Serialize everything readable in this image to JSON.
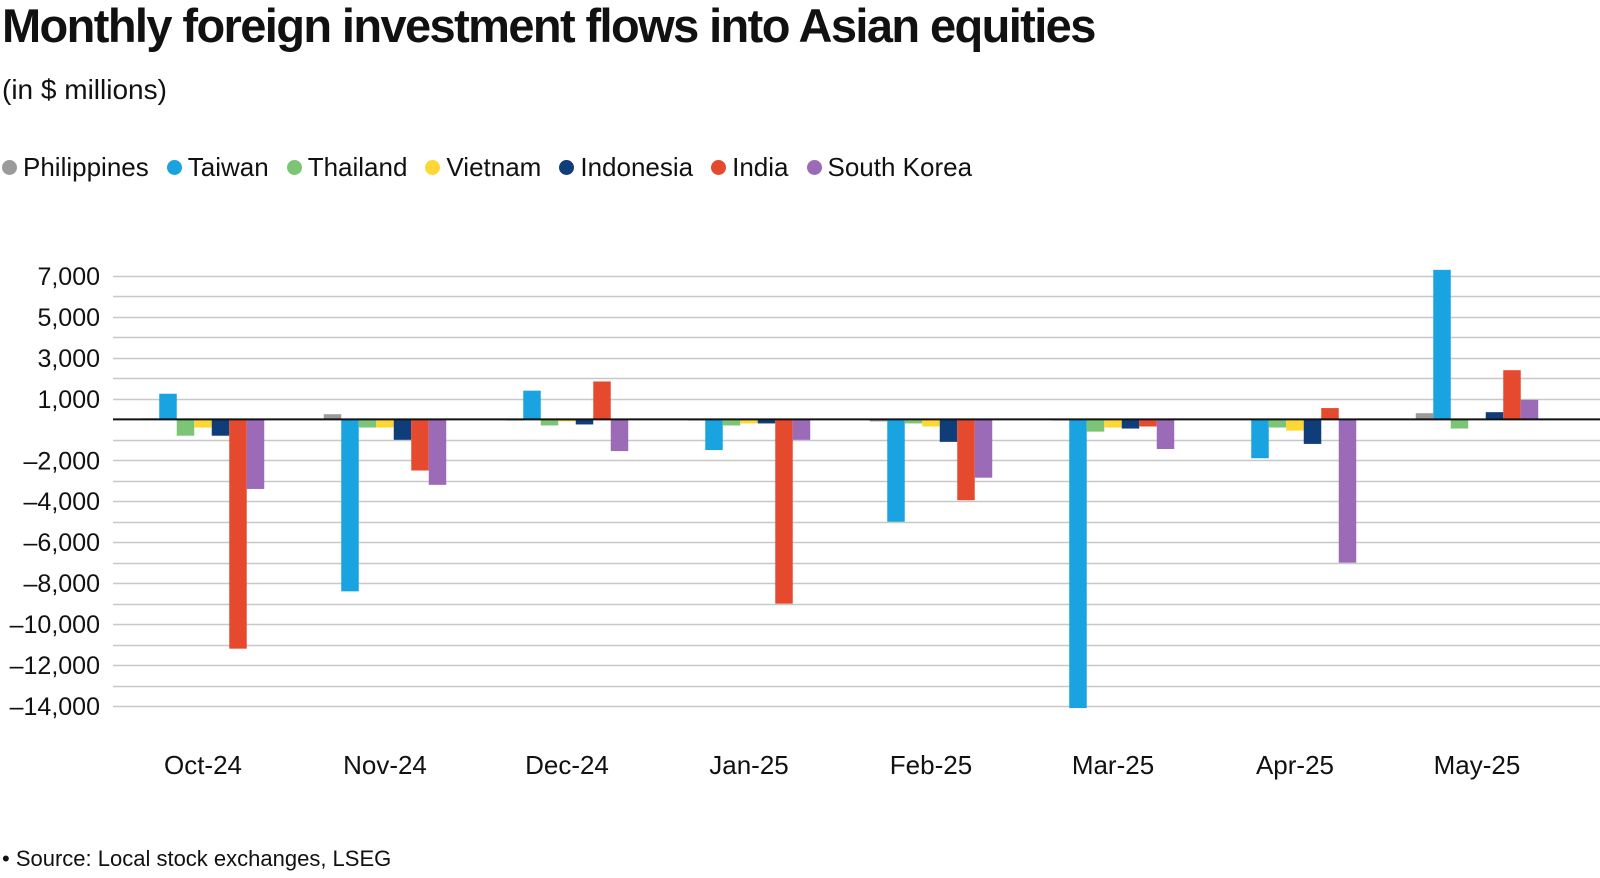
{
  "title": "Monthly foreign investment flows into Asian equities",
  "subtitle": "(in $ millions)",
  "source": "• Source: Local stock exchanges, LSEG",
  "colors": {
    "Philippines": "#9b9b9b",
    "Taiwan": "#19a3e0",
    "Thailand": "#7cc576",
    "Vietnam": "#fdd835",
    "Indonesia": "#0f3d7a",
    "India": "#e54a2e",
    "South Korea": "#9b6bb8",
    "grid": "#c8c8c8",
    "zero_line": "#111111"
  },
  "chart_data": {
    "type": "bar",
    "categories": [
      "Oct-24",
      "Nov-24",
      "Dec-24",
      "Jan-25",
      "Feb-25",
      "Mar-25",
      "Apr-25",
      "May-25"
    ],
    "series": [
      {
        "name": "Philippines",
        "values": [
          50,
          250,
          -50,
          -50,
          -100,
          -50,
          0,
          300
        ]
      },
      {
        "name": "Taiwan",
        "values": [
          1250,
          -8400,
          1400,
          -1500,
          -5000,
          -14100,
          -1900,
          7300
        ]
      },
      {
        "name": "Thailand",
        "values": [
          -800,
          -400,
          -300,
          -300,
          -200,
          -600,
          -400,
          -450
        ]
      },
      {
        "name": "Vietnam",
        "values": [
          -400,
          -400,
          -100,
          -200,
          -350,
          -400,
          -550,
          0
        ]
      },
      {
        "name": "Indonesia",
        "values": [
          -800,
          -1000,
          -250,
          -200,
          -1100,
          -450,
          -1200,
          350
        ]
      },
      {
        "name": "India",
        "values": [
          -11200,
          -2500,
          1850,
          -9000,
          -3950,
          -350,
          550,
          2400
        ]
      },
      {
        "name": "South Korea",
        "values": [
          -3400,
          -3200,
          -1550,
          -1000,
          -2850,
          -1450,
          -7000,
          950
        ]
      }
    ],
    "yticks": [
      7000,
      5000,
      3000,
      1000,
      -2000,
      -4000,
      -6000,
      -8000,
      -10000,
      -12000,
      -14000
    ],
    "ytick_labels": [
      "7,000",
      "5,000",
      "3,000",
      "1,000",
      "–2,000",
      "–4,000",
      "–6,000",
      "–8,000",
      "–10,000",
      "–12,000",
      "–14,000"
    ],
    "ylim": [
      -14000,
      7000
    ],
    "gridline_step": 1000,
    "grid": true,
    "legend": "top-left",
    "xlabel": "",
    "ylabel": ""
  }
}
